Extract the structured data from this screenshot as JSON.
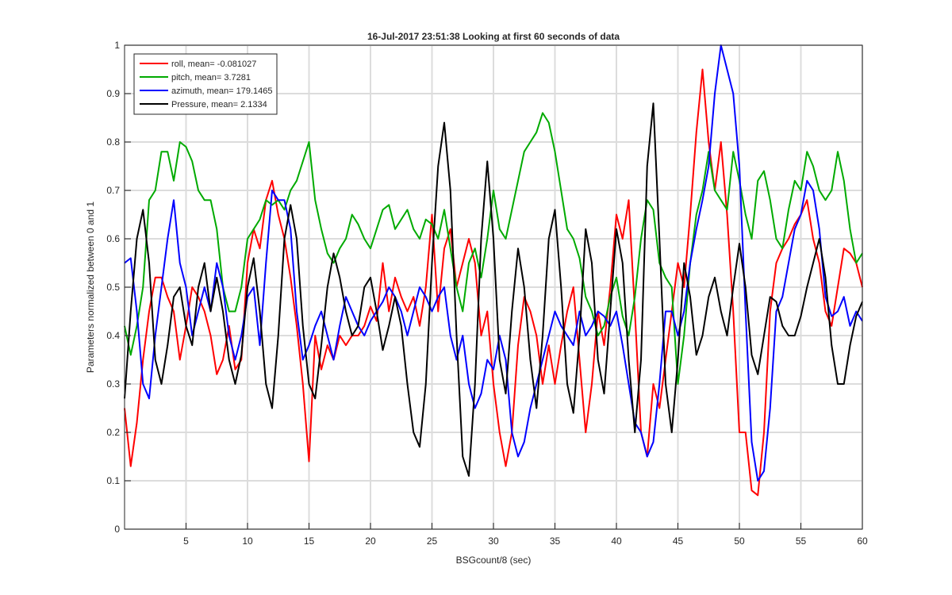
{
  "chart_data": {
    "type": "line",
    "title": "16-Jul-2017 23:51:38 Looking at first 60 seconds of data",
    "xlabel": "BSGcount/8 (sec)",
    "ylabel": "Parameters normalized between 0 and 1",
    "xlim": [
      0,
      60
    ],
    "ylim": [
      0,
      1
    ],
    "xticks": [
      5,
      10,
      15,
      20,
      25,
      30,
      35,
      40,
      45,
      50,
      55,
      60
    ],
    "yticks": [
      0,
      0.1,
      0.2,
      0.3,
      0.4,
      0.5,
      0.6,
      0.7,
      0.8,
      0.9,
      1
    ],
    "grid": true,
    "legend": "upper-left",
    "x": [
      0,
      0.5,
      1,
      1.5,
      2,
      2.5,
      3,
      3.5,
      4,
      4.5,
      5,
      5.5,
      6,
      6.5,
      7,
      7.5,
      8,
      8.5,
      9,
      9.5,
      10,
      10.5,
      11,
      11.5,
      12,
      12.5,
      13,
      13.5,
      14,
      14.5,
      15,
      15.5,
      16,
      16.5,
      17,
      17.5,
      18,
      18.5,
      19,
      19.5,
      20,
      20.5,
      21,
      21.5,
      22,
      22.5,
      23,
      23.5,
      24,
      24.5,
      25,
      25.5,
      26,
      26.5,
      27,
      27.5,
      28,
      28.5,
      29,
      29.5,
      30,
      30.5,
      31,
      31.5,
      32,
      32.5,
      33,
      33.5,
      34,
      34.5,
      35,
      35.5,
      36,
      36.5,
      37,
      37.5,
      38,
      38.5,
      39,
      39.5,
      40,
      40.5,
      41,
      41.5,
      42,
      42.5,
      43,
      43.5,
      44,
      44.5,
      45,
      45.5,
      46,
      46.5,
      47,
      47.5,
      48,
      48.5,
      49,
      49.5,
      50,
      50.5,
      51,
      51.5,
      52,
      52.5,
      53,
      53.5,
      54,
      54.5,
      55,
      55.5,
      56,
      56.5,
      57,
      57.5,
      58,
      58.5,
      59,
      59.5,
      60
    ],
    "series": [
      {
        "name": "roll, mean= -0.081027",
        "color": "#ff0000",
        "values": [
          0.25,
          0.13,
          0.22,
          0.35,
          0.45,
          0.52,
          0.52,
          0.48,
          0.45,
          0.35,
          0.42,
          0.5,
          0.48,
          0.45,
          0.4,
          0.32,
          0.35,
          0.42,
          0.33,
          0.35,
          0.55,
          0.62,
          0.58,
          0.68,
          0.72,
          0.65,
          0.6,
          0.52,
          0.42,
          0.3,
          0.14,
          0.4,
          0.33,
          0.38,
          0.35,
          0.4,
          0.38,
          0.4,
          0.4,
          0.42,
          0.46,
          0.43,
          0.55,
          0.45,
          0.52,
          0.48,
          0.45,
          0.48,
          0.42,
          0.5,
          0.65,
          0.45,
          0.58,
          0.62,
          0.5,
          0.55,
          0.6,
          0.55,
          0.4,
          0.45,
          0.3,
          0.2,
          0.13,
          0.2,
          0.38,
          0.48,
          0.45,
          0.4,
          0.3,
          0.38,
          0.3,
          0.38,
          0.45,
          0.5,
          0.35,
          0.2,
          0.3,
          0.45,
          0.38,
          0.5,
          0.65,
          0.6,
          0.68,
          0.45,
          0.2,
          0.15,
          0.3,
          0.25,
          0.35,
          0.45,
          0.55,
          0.5,
          0.65,
          0.82,
          0.95,
          0.8,
          0.7,
          0.8,
          0.65,
          0.45,
          0.2,
          0.2,
          0.08,
          0.07,
          0.2,
          0.45,
          0.55,
          0.58,
          0.6,
          0.63,
          0.65,
          0.68,
          0.6,
          0.55,
          0.45,
          0.42,
          0.5,
          0.58,
          0.57,
          0.55,
          0.5
        ]
      },
      {
        "name": "pitch, mean= 3.7281",
        "color": "#00aa00",
        "values": [
          0.42,
          0.36,
          0.42,
          0.5,
          0.68,
          0.7,
          0.78,
          0.78,
          0.72,
          0.8,
          0.79,
          0.76,
          0.7,
          0.68,
          0.68,
          0.62,
          0.5,
          0.45,
          0.45,
          0.5,
          0.6,
          0.62,
          0.64,
          0.68,
          0.67,
          0.68,
          0.66,
          0.7,
          0.72,
          0.76,
          0.8,
          0.68,
          0.62,
          0.57,
          0.55,
          0.58,
          0.6,
          0.65,
          0.63,
          0.6,
          0.58,
          0.62,
          0.66,
          0.67,
          0.62,
          0.64,
          0.66,
          0.62,
          0.6,
          0.64,
          0.63,
          0.6,
          0.66,
          0.58,
          0.5,
          0.45,
          0.55,
          0.58,
          0.52,
          0.6,
          0.7,
          0.62,
          0.6,
          0.66,
          0.72,
          0.78,
          0.8,
          0.82,
          0.86,
          0.84,
          0.78,
          0.7,
          0.62,
          0.6,
          0.56,
          0.48,
          0.45,
          0.4,
          0.42,
          0.48,
          0.52,
          0.44,
          0.4,
          0.48,
          0.6,
          0.68,
          0.66,
          0.55,
          0.52,
          0.5,
          0.3,
          0.4,
          0.55,
          0.65,
          0.7,
          0.78,
          0.7,
          0.68,
          0.66,
          0.78,
          0.72,
          0.65,
          0.6,
          0.72,
          0.74,
          0.68,
          0.6,
          0.58,
          0.66,
          0.72,
          0.7,
          0.78,
          0.75,
          0.7,
          0.68,
          0.7,
          0.78,
          0.72,
          0.62,
          0.55,
          0.57
        ]
      },
      {
        "name": "azimuth, mean= 179.1465",
        "color": "#0000ff",
        "values": [
          0.55,
          0.56,
          0.45,
          0.3,
          0.27,
          0.4,
          0.5,
          0.6,
          0.68,
          0.55,
          0.5,
          0.4,
          0.45,
          0.5,
          0.45,
          0.55,
          0.5,
          0.4,
          0.35,
          0.4,
          0.48,
          0.5,
          0.38,
          0.55,
          0.7,
          0.68,
          0.68,
          0.62,
          0.45,
          0.35,
          0.38,
          0.42,
          0.45,
          0.4,
          0.35,
          0.42,
          0.48,
          0.45,
          0.42,
          0.4,
          0.43,
          0.45,
          0.47,
          0.5,
          0.48,
          0.45,
          0.4,
          0.45,
          0.5,
          0.48,
          0.45,
          0.48,
          0.5,
          0.4,
          0.35,
          0.4,
          0.3,
          0.25,
          0.28,
          0.35,
          0.33,
          0.4,
          0.35,
          0.2,
          0.15,
          0.18,
          0.25,
          0.3,
          0.35,
          0.4,
          0.45,
          0.42,
          0.4,
          0.38,
          0.45,
          0.4,
          0.42,
          0.45,
          0.44,
          0.42,
          0.45,
          0.38,
          0.3,
          0.22,
          0.2,
          0.15,
          0.18,
          0.3,
          0.45,
          0.45,
          0.4,
          0.45,
          0.55,
          0.62,
          0.68,
          0.75,
          0.9,
          1.0,
          0.95,
          0.9,
          0.75,
          0.45,
          0.18,
          0.1,
          0.12,
          0.25,
          0.45,
          0.48,
          0.55,
          0.62,
          0.65,
          0.72,
          0.7,
          0.62,
          0.48,
          0.44,
          0.45,
          0.48,
          0.42,
          0.45,
          0.43
        ]
      },
      {
        "name": "Pressure, mean= 2.1334",
        "color": "#000000",
        "values": [
          0.27,
          0.45,
          0.6,
          0.66,
          0.55,
          0.35,
          0.3,
          0.38,
          0.48,
          0.5,
          0.42,
          0.38,
          0.5,
          0.55,
          0.45,
          0.52,
          0.45,
          0.35,
          0.3,
          0.36,
          0.5,
          0.56,
          0.45,
          0.3,
          0.25,
          0.4,
          0.6,
          0.67,
          0.6,
          0.42,
          0.3,
          0.27,
          0.38,
          0.5,
          0.57,
          0.52,
          0.45,
          0.4,
          0.42,
          0.5,
          0.52,
          0.45,
          0.37,
          0.42,
          0.48,
          0.42,
          0.3,
          0.2,
          0.17,
          0.3,
          0.55,
          0.75,
          0.84,
          0.7,
          0.4,
          0.15,
          0.11,
          0.3,
          0.6,
          0.76,
          0.6,
          0.35,
          0.28,
          0.45,
          0.58,
          0.5,
          0.35,
          0.25,
          0.4,
          0.6,
          0.66,
          0.5,
          0.3,
          0.24,
          0.4,
          0.62,
          0.55,
          0.35,
          0.28,
          0.45,
          0.62,
          0.55,
          0.35,
          0.2,
          0.35,
          0.75,
          0.88,
          0.6,
          0.3,
          0.2,
          0.35,
          0.55,
          0.48,
          0.36,
          0.4,
          0.48,
          0.52,
          0.45,
          0.4,
          0.5,
          0.59,
          0.5,
          0.36,
          0.32,
          0.4,
          0.48,
          0.47,
          0.42,
          0.4,
          0.4,
          0.44,
          0.5,
          0.55,
          0.6,
          0.52,
          0.38,
          0.3,
          0.3,
          0.38,
          0.44,
          0.47
        ]
      }
    ]
  }
}
